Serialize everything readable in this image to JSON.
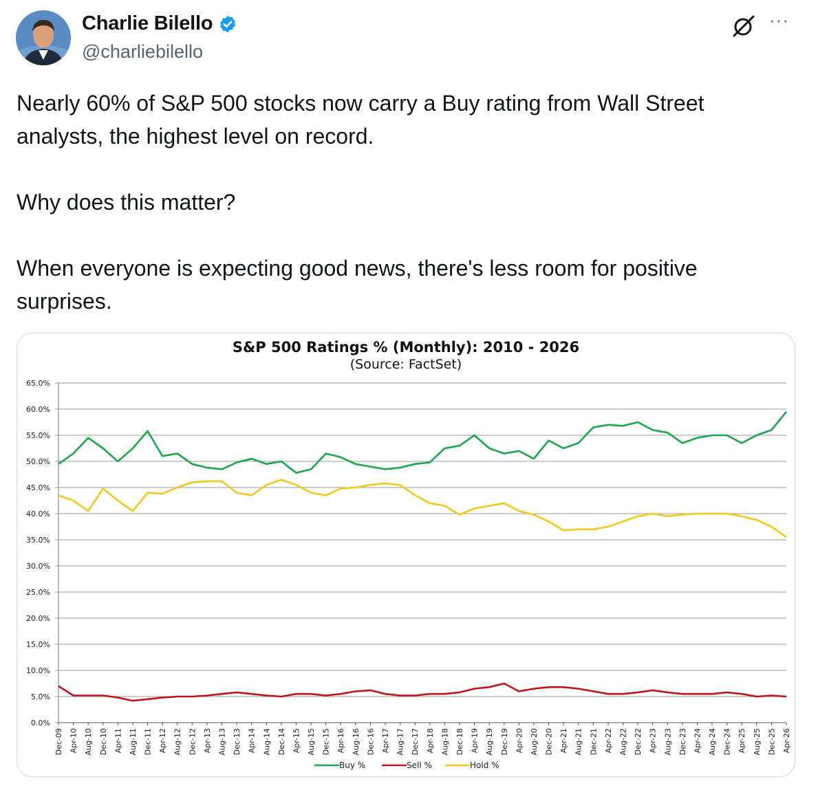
{
  "author": {
    "display_name": "Charlie Bilello",
    "handle": "@charliebilello",
    "verified": true,
    "verified_color": "#1d9bf0"
  },
  "header_icons": {
    "grok": "grok-icon",
    "more": "more-icon"
  },
  "tweet": {
    "paragraphs": [
      "Nearly 60% of S&P 500 stocks now carry a Buy rating from Wall Street analysts, the highest level on record.",
      "Why does this matter?",
      "When everyone is expecting good news, there's less room for positive surprises."
    ]
  },
  "chart_data": {
    "type": "line",
    "title": "S&P 500 Ratings % (Monthly): 2010 - 2026",
    "subtitle": "(Source: FactSet)",
    "x_tick_labels": [
      "Dec-09",
      "Apr-10",
      "Aug-10",
      "Dec-10",
      "Apr-11",
      "Aug-11",
      "Dec-11",
      "Apr-12",
      "Aug-12",
      "Dec-12",
      "Apr-13",
      "Aug-13",
      "Dec-13",
      "Apr-14",
      "Aug-14",
      "Dec-14",
      "Apr-15",
      "Aug-15",
      "Dec-15",
      "Apr-16",
      "Aug-16",
      "Dec-16",
      "Apr-17",
      "Aug-17",
      "Dec-17",
      "Apr-18",
      "Aug-18",
      "Dec-18",
      "Apr-19",
      "Aug-19",
      "Dec-19",
      "Apr-20",
      "Aug-20",
      "Dec-20",
      "Apr-21",
      "Aug-21",
      "Dec-21",
      "Apr-22",
      "Aug-22",
      "Dec-22",
      "Apr-23",
      "Aug-23",
      "Dec-23",
      "Apr-24",
      "Aug-24",
      "Dec-24",
      "Apr-25",
      "Aug-25",
      "Dec-25",
      "Apr-26"
    ],
    "y_ticks": [
      "0.0%",
      "5.0%",
      "10.0%",
      "15.0%",
      "20.0%",
      "25.0%",
      "30.0%",
      "35.0%",
      "40.0%",
      "45.0%",
      "50.0%",
      "55.0%",
      "60.0%",
      "65.0%"
    ],
    "ylim": [
      0,
      65
    ],
    "grid": true,
    "legend_position": "bottom",
    "series": [
      {
        "name": "Buy %",
        "color": "#1aa64a",
        "values": [
          49.5,
          51.5,
          54.5,
          52.5,
          50.0,
          52.5,
          55.8,
          51.0,
          51.5,
          49.5,
          48.8,
          48.5,
          49.8,
          50.5,
          49.5,
          50.0,
          47.8,
          48.5,
          51.5,
          50.8,
          49.5,
          49.0,
          48.5,
          48.8,
          49.5,
          49.8,
          52.5,
          53.0,
          55.0,
          52.5,
          51.5,
          52.0,
          50.5,
          54.0,
          52.5,
          53.5,
          56.5,
          57.0,
          56.8,
          57.5,
          56.0,
          55.5,
          53.5,
          54.5,
          55.0,
          55.0,
          53.5,
          55.0,
          56.0,
          59.5
        ]
      },
      {
        "name": "Sell %",
        "color": "#c0141c",
        "values": [
          7.0,
          5.2,
          5.2,
          5.2,
          4.8,
          4.2,
          4.5,
          4.8,
          5.0,
          5.0,
          5.2,
          5.5,
          5.8,
          5.5,
          5.2,
          5.0,
          5.5,
          5.5,
          5.2,
          5.5,
          6.0,
          6.2,
          5.5,
          5.2,
          5.2,
          5.5,
          5.5,
          5.8,
          6.5,
          6.8,
          7.5,
          6.0,
          6.5,
          6.8,
          6.8,
          6.5,
          6.0,
          5.5,
          5.5,
          5.8,
          6.2,
          5.8,
          5.5,
          5.5,
          5.5,
          5.8,
          5.5,
          5.0,
          5.2,
          5.0
        ]
      },
      {
        "name": "Hold %",
        "color": "#f2c81c",
        "values": [
          43.5,
          42.5,
          40.5,
          44.8,
          42.5,
          40.5,
          44.0,
          43.8,
          45.0,
          46.0,
          46.2,
          46.2,
          44.0,
          43.5,
          45.5,
          46.5,
          45.5,
          44.0,
          43.5,
          44.8,
          45.0,
          45.5,
          45.8,
          45.5,
          43.5,
          42.0,
          41.5,
          39.8,
          41.0,
          41.5,
          42.0,
          40.5,
          39.8,
          38.5,
          36.8,
          37.0,
          37.0,
          37.5,
          38.5,
          39.5,
          40.0,
          39.5,
          39.8,
          40.0,
          40.0,
          40.0,
          39.5,
          38.8,
          37.5,
          35.5
        ]
      }
    ]
  }
}
